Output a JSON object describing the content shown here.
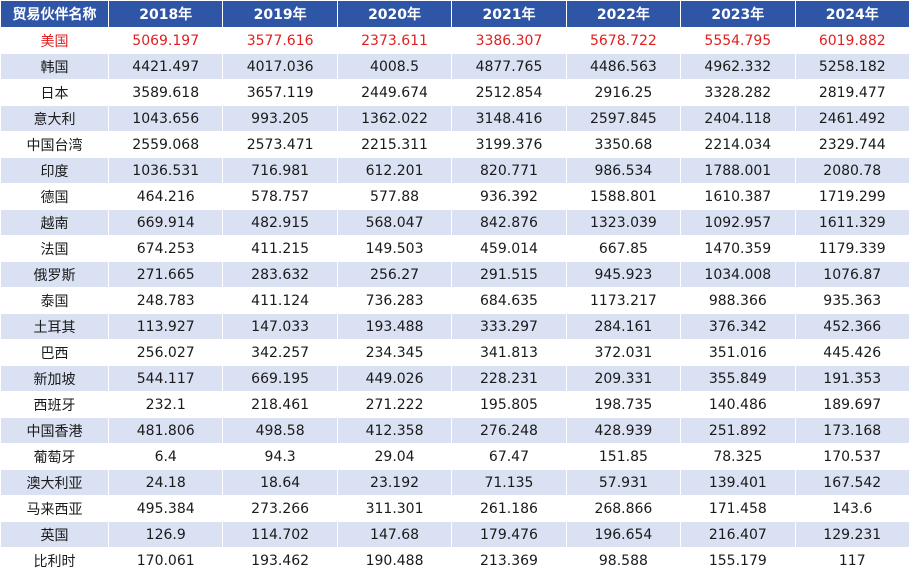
{
  "header": {
    "partner_label": "贸易伙伴名称",
    "years": [
      "2018年",
      "2019年",
      "2020年",
      "2021年",
      "2022年",
      "2023年",
      "2024年"
    ]
  },
  "rows": [
    {
      "name": "美国",
      "values": [
        "5069.197",
        "3577.616",
        "2373.611",
        "3386.307",
        "5678.722",
        "5554.795",
        "6019.882"
      ],
      "highlight": true
    },
    {
      "name": "韩国",
      "values": [
        "4421.497",
        "4017.036",
        "4008.5",
        "4877.765",
        "4486.563",
        "4962.332",
        "5258.182"
      ]
    },
    {
      "name": "日本",
      "values": [
        "3589.618",
        "3657.119",
        "2449.674",
        "2512.854",
        "2916.25",
        "3328.282",
        "2819.477"
      ]
    },
    {
      "name": "意大利",
      "values": [
        "1043.656",
        "993.205",
        "1362.022",
        "3148.416",
        "2597.845",
        "2404.118",
        "2461.492"
      ]
    },
    {
      "name": "中国台湾",
      "values": [
        "2559.068",
        "2573.471",
        "2215.311",
        "3199.376",
        "3350.68",
        "2214.034",
        "2329.744"
      ]
    },
    {
      "name": "印度",
      "values": [
        "1036.531",
        "716.981",
        "612.201",
        "820.771",
        "986.534",
        "1788.001",
        "2080.78"
      ]
    },
    {
      "name": "德国",
      "values": [
        "464.216",
        "578.757",
        "577.88",
        "936.392",
        "1588.801",
        "1610.387",
        "1719.299"
      ]
    },
    {
      "name": "越南",
      "values": [
        "669.914",
        "482.915",
        "568.047",
        "842.876",
        "1323.039",
        "1092.957",
        "1611.329"
      ]
    },
    {
      "name": "法国",
      "values": [
        "674.253",
        "411.215",
        "149.503",
        "459.014",
        "667.85",
        "1470.359",
        "1179.339"
      ]
    },
    {
      "name": "俄罗斯",
      "values": [
        "271.665",
        "283.632",
        "256.27",
        "291.515",
        "945.923",
        "1034.008",
        "1076.87"
      ]
    },
    {
      "name": "泰国",
      "values": [
        "248.783",
        "411.124",
        "736.283",
        "684.635",
        "1173.217",
        "988.366",
        "935.363"
      ]
    },
    {
      "name": "土耳其",
      "values": [
        "113.927",
        "147.033",
        "193.488",
        "333.297",
        "284.161",
        "376.342",
        "452.366"
      ]
    },
    {
      "name": "巴西",
      "values": [
        "256.027",
        "342.257",
        "234.345",
        "341.813",
        "372.031",
        "351.016",
        "445.426"
      ]
    },
    {
      "name": "新加坡",
      "values": [
        "544.117",
        "669.195",
        "449.026",
        "228.231",
        "209.331",
        "355.849",
        "191.353"
      ]
    },
    {
      "name": "西班牙",
      "values": [
        "232.1",
        "218.461",
        "271.222",
        "195.805",
        "198.735",
        "140.486",
        "189.697"
      ]
    },
    {
      "name": "中国香港",
      "values": [
        "481.806",
        "498.58",
        "412.358",
        "276.248",
        "428.939",
        "251.892",
        "173.168"
      ]
    },
    {
      "name": "葡萄牙",
      "values": [
        "6.4",
        "94.3",
        "29.04",
        "67.47",
        "151.85",
        "78.325",
        "170.537"
      ]
    },
    {
      "name": "澳大利亚",
      "values": [
        "24.18",
        "18.64",
        "23.192",
        "71.135",
        "57.931",
        "139.401",
        "167.542"
      ]
    },
    {
      "name": "马来西亚",
      "values": [
        "495.384",
        "273.266",
        "311.301",
        "261.186",
        "268.866",
        "171.458",
        "143.6"
      ]
    },
    {
      "name": "英国",
      "values": [
        "126.9",
        "114.702",
        "147.68",
        "179.476",
        "196.654",
        "216.407",
        "129.231"
      ]
    },
    {
      "name": "比利时",
      "values": [
        "170.061",
        "193.462",
        "190.488",
        "213.369",
        "98.588",
        "155.179",
        "117"
      ]
    }
  ],
  "colors": {
    "header_bg": "#2f56a6",
    "header_text": "#ffffff",
    "stripe_bg": "#d9e1f2",
    "highlight_text": "#e02020"
  }
}
